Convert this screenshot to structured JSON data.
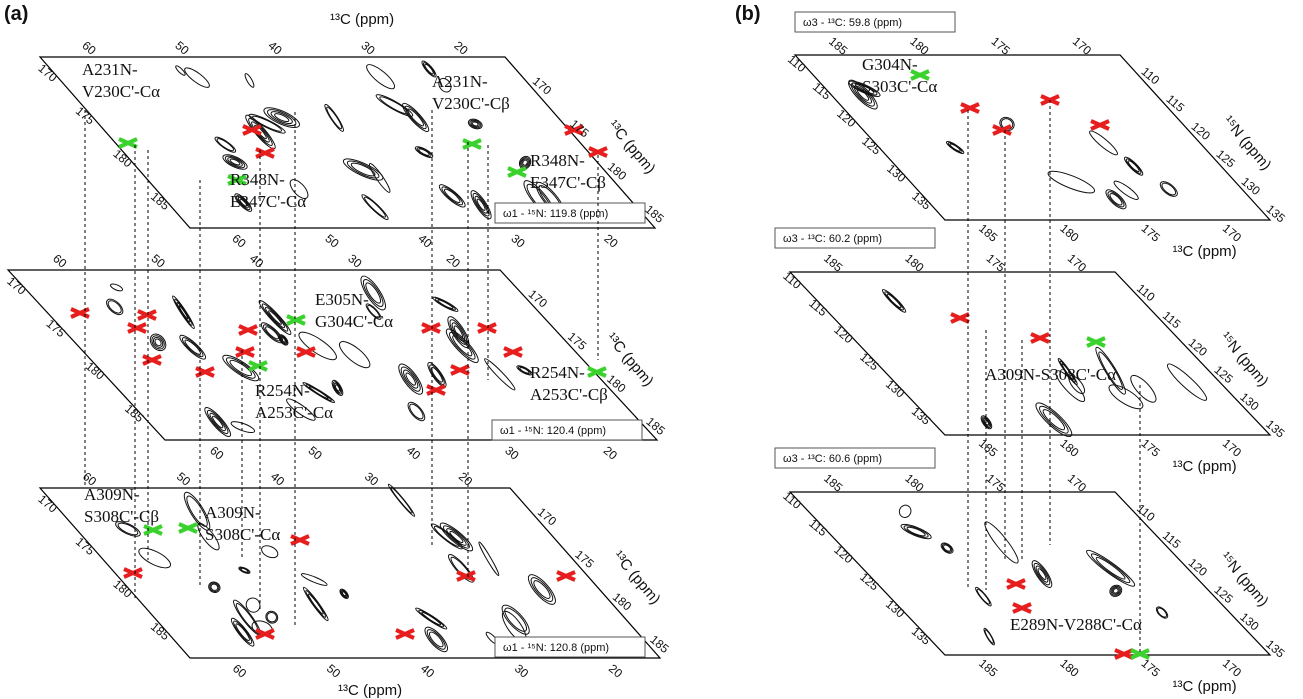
{
  "panels": [
    {
      "label": "(a)",
      "top_axis_title": "¹³C (ppm)",
      "bottom_axis_title": "¹³C (ppm)",
      "planes": [
        {
          "plane_label": "ω1 - ¹⁵N: 119.8 (ppm)",
          "side_axis_title": "¹³C (ppm)",
          "top_ticks": [
            60,
            50,
            40,
            30,
            20
          ],
          "bottom_ticks": [
            60,
            50,
            40,
            30,
            20
          ],
          "left_ticks": [
            170,
            175,
            180,
            185
          ],
          "right_ticks": [
            170,
            175,
            180,
            185
          ],
          "annotations": [
            {
              "lines": [
                "A231N-",
                "V230C'-Cα"
              ]
            },
            {
              "lines": [
                "A231N-",
                "V230C'-Cβ"
              ]
            },
            {
              "lines": [
                "R348N-",
                "E347C'-Cα"
              ]
            },
            {
              "lines": [
                "R348N-",
                "E347C'-Cβ"
              ]
            }
          ]
        },
        {
          "plane_label": "ω1 - ¹⁵N: 120.4 (ppm)",
          "side_axis_title": "¹³C (ppm)",
          "top_ticks": [
            60,
            50,
            40,
            30,
            20
          ],
          "bottom_ticks": [
            60,
            50,
            40,
            30,
            20
          ],
          "left_ticks": [
            170,
            175,
            180,
            185
          ],
          "right_ticks": [
            170,
            175,
            180,
            185
          ],
          "annotations": [
            {
              "lines": [
                "E305N-",
                "G304C'-Cα"
              ]
            },
            {
              "lines": [
                "R254N-",
                "A253C'-Cα"
              ]
            },
            {
              "lines": [
                "R254N-",
                "A253C'-Cβ"
              ]
            }
          ]
        },
        {
          "plane_label": "ω1 - ¹⁵N: 120.8 (ppm)",
          "side_axis_title": "¹³C (ppm)",
          "top_ticks": [
            60,
            50,
            40,
            30,
            20
          ],
          "bottom_ticks": [
            60,
            50,
            40,
            30,
            20
          ],
          "left_ticks": [
            170,
            175,
            180,
            185
          ],
          "right_ticks": [
            170,
            175,
            180,
            185
          ],
          "annotations": [
            {
              "lines": [
                "A309N-",
                "S308C'-Cβ"
              ]
            },
            {
              "lines": [
                "A309N-",
                "S308C'-Cα"
              ]
            }
          ]
        }
      ]
    },
    {
      "label": "(b)",
      "planes": [
        {
          "plane_label": "ω3 - ¹³C: 59.8 (ppm)",
          "side_axis_title": "¹⁵N (ppm)",
          "bottom_axis_title": "¹³C (ppm)",
          "top_ticks": [
            185,
            180,
            175,
            170
          ],
          "bottom_ticks": [
            185,
            180,
            175,
            170
          ],
          "left_ticks": [
            110,
            115,
            120,
            125,
            130,
            135
          ],
          "right_ticks": [
            110,
            115,
            120,
            125,
            130,
            135
          ],
          "annotations": [
            {
              "lines": [
                "G304N-",
                "S303C'-Cα"
              ]
            }
          ]
        },
        {
          "plane_label": "ω3 - ¹³C: 60.2 (ppm)",
          "side_axis_title": "¹⁵N (ppm)",
          "bottom_axis_title": "¹³C (ppm)",
          "top_ticks": [
            185,
            180,
            175,
            170
          ],
          "bottom_ticks": [
            185,
            180,
            175,
            170
          ],
          "left_ticks": [
            110,
            115,
            120,
            125,
            130,
            135
          ],
          "right_ticks": [
            110,
            115,
            120,
            125,
            130,
            135
          ],
          "annotations": [
            {
              "lines": [
                "A309N-S308C'-Cα"
              ]
            }
          ]
        },
        {
          "plane_label": "ω3 - ¹³C: 60.6 (ppm)",
          "side_axis_title": "¹⁵N (ppm)",
          "bottom_axis_title": "¹³C (ppm)",
          "top_ticks": [
            185,
            180,
            175,
            170
          ],
          "bottom_ticks": [
            185,
            180,
            175,
            170
          ],
          "left_ticks": [
            110,
            115,
            120,
            125,
            130,
            135
          ],
          "right_ticks": [
            110,
            115,
            120,
            125,
            130,
            135
          ],
          "annotations": [
            {
              "lines": [
                "E289N-V288C'-Cα"
              ]
            }
          ]
        }
      ]
    }
  ]
}
